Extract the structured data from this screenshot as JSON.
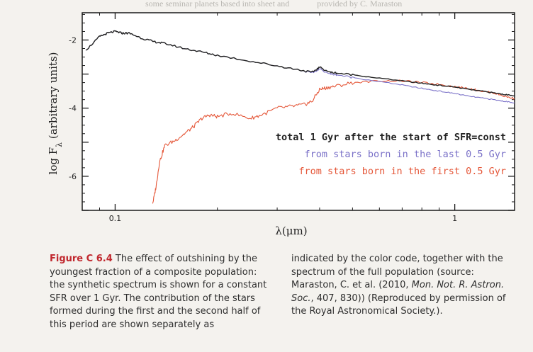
{
  "header_ghost": [
    "some seminar planets based into sheet and",
    "provided by C. Maraston"
  ],
  "chart_data": {
    "type": "line",
    "xscale": "log",
    "xlim": [
      0.08,
      1.5
    ],
    "ylim": [
      -7.0,
      -1.2
    ],
    "xlabel": "λ(μm)",
    "ylabel": "log F_λ (arbitrary units)",
    "ylabel_parts": [
      "log F",
      "λ",
      " (arbitrary units)"
    ],
    "xticks": [
      {
        "v": 0.1,
        "label": "0.1"
      },
      {
        "v": 1,
        "label": "1"
      }
    ],
    "yticks": [
      {
        "v": -2,
        "label": "-2"
      },
      {
        "v": -4,
        "label": "-4"
      },
      {
        "v": -6,
        "label": "-6"
      }
    ],
    "colors": {
      "total": "#222222",
      "young": "#7b72c8",
      "old": "#e5583a",
      "axis": "#1a1a1a"
    },
    "legend": [
      {
        "text": "total 1 Gyr after the start of SFR=const",
        "color": "#222222",
        "bold": true
      },
      {
        "text": "from stars born in the last 0.5 Gyr",
        "color": "#7b72c8",
        "bold": false
      },
      {
        "text": "from stars born in the first 0.5 Gyr",
        "color": "#e5583a",
        "bold": false
      }
    ],
    "series": [
      {
        "name": "total 1 Gyr after the start of SFR=const",
        "key": "total",
        "x": [
          0.082,
          0.09,
          0.095,
          0.1,
          0.105,
          0.11,
          0.12,
          0.13,
          0.14,
          0.16,
          0.18,
          0.2,
          0.25,
          0.3,
          0.35,
          0.38,
          0.4,
          0.43,
          0.45,
          0.5,
          0.6,
          0.7,
          0.8,
          0.9,
          1.0,
          1.1,
          1.2,
          1.3,
          1.4,
          1.5
        ],
        "y": [
          -2.3,
          -1.9,
          -1.8,
          -1.75,
          -1.8,
          -1.8,
          -1.95,
          -2.05,
          -2.1,
          -2.25,
          -2.35,
          -2.45,
          -2.62,
          -2.76,
          -2.88,
          -2.95,
          -2.8,
          -2.95,
          -2.97,
          -3.02,
          -3.12,
          -3.2,
          -3.27,
          -3.33,
          -3.38,
          -3.45,
          -3.5,
          -3.55,
          -3.6,
          -3.63
        ]
      },
      {
        "name": "from stars born in the last 0.5 Gyr",
        "key": "young",
        "x": [
          0.082,
          0.09,
          0.095,
          0.1,
          0.105,
          0.11,
          0.12,
          0.13,
          0.14,
          0.16,
          0.18,
          0.2,
          0.25,
          0.3,
          0.35,
          0.38,
          0.4,
          0.43,
          0.45,
          0.5,
          0.6,
          0.7,
          0.8,
          0.9,
          1.0,
          1.1,
          1.2,
          1.3,
          1.4,
          1.5
        ],
        "y": [
          -2.3,
          -1.9,
          -1.8,
          -1.75,
          -1.8,
          -1.8,
          -1.95,
          -2.05,
          -2.1,
          -2.25,
          -2.35,
          -2.45,
          -2.62,
          -2.76,
          -2.88,
          -2.97,
          -2.85,
          -3.0,
          -3.02,
          -3.1,
          -3.22,
          -3.32,
          -3.42,
          -3.5,
          -3.57,
          -3.65,
          -3.7,
          -3.75,
          -3.8,
          -3.84
        ]
      },
      {
        "name": "from stars born in the first 0.5 Gyr",
        "key": "old",
        "x": [
          0.129,
          0.132,
          0.135,
          0.14,
          0.15,
          0.16,
          0.17,
          0.18,
          0.19,
          0.2,
          0.22,
          0.25,
          0.27,
          0.3,
          0.33,
          0.36,
          0.38,
          0.4,
          0.42,
          0.45,
          0.5,
          0.6,
          0.7,
          0.8,
          0.9,
          1.0,
          1.1,
          1.2,
          1.3,
          1.4,
          1.5
        ],
        "y": [
          -6.8,
          -6.3,
          -5.6,
          -5.1,
          -4.95,
          -4.75,
          -4.55,
          -4.3,
          -4.2,
          -4.25,
          -4.15,
          -4.3,
          -4.2,
          -4.0,
          -3.95,
          -3.9,
          -3.8,
          -3.45,
          -3.4,
          -3.35,
          -3.25,
          -3.2,
          -3.2,
          -3.25,
          -3.3,
          -3.37,
          -3.42,
          -3.5,
          -3.55,
          -3.65,
          -3.72
        ]
      }
    ]
  },
  "caption": {
    "label": "Figure C 6.4",
    "left_text": "The effect of outshining by the youngest fraction of a composite population: the synthetic spectrum is shown for a constant SFR over 1 Gyr. The contribution of the stars formed during the first and the second half of this period are shown separately as",
    "right_text_1": "indicated by the color code, together with the spectrum of the full population  (source: Maraston, C. et al. (2010, ",
    "right_journal": "Mon. Not. R. Astron. Soc.",
    "right_text_2": ", 407, 830))  (Reproduced by permission of the Royal Astronomical Society.)."
  }
}
